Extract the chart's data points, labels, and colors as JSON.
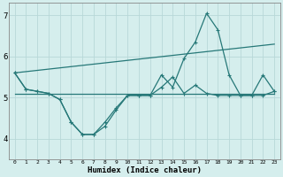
{
  "title": "",
  "xlabel": "Humidex (Indice chaleur)",
  "ylabel": "",
  "bg_color": "#d5eeed",
  "grid_color": "#b8d8d8",
  "line_color": "#267878",
  "xlim": [
    -0.5,
    23.5
  ],
  "ylim": [
    3.5,
    7.3
  ],
  "yticks": [
    4,
    5,
    6,
    7
  ],
  "xticks": [
    0,
    1,
    2,
    3,
    4,
    5,
    6,
    7,
    8,
    9,
    10,
    11,
    12,
    13,
    14,
    15,
    16,
    17,
    18,
    19,
    20,
    21,
    22,
    23
  ],
  "series": {
    "line1_x": [
      0,
      1,
      2,
      3,
      4,
      5,
      6,
      7,
      8,
      9,
      10,
      11,
      12,
      13,
      14,
      15,
      16,
      17,
      18,
      19,
      20,
      21,
      22,
      23
    ],
    "line1_y": [
      5.6,
      5.2,
      5.15,
      5.1,
      4.95,
      4.4,
      4.1,
      4.1,
      4.3,
      4.7,
      5.05,
      5.05,
      5.05,
      5.25,
      5.5,
      5.1,
      5.3,
      5.1,
      5.05,
      5.05,
      5.05,
      5.05,
      5.05,
      5.15
    ],
    "line2_x": [
      0,
      1,
      2,
      3,
      4,
      5,
      6,
      7,
      8,
      9,
      10,
      11,
      12,
      13,
      14,
      15,
      16,
      17,
      18,
      19,
      20,
      21,
      22,
      23
    ],
    "line2_y": [
      5.6,
      5.2,
      5.15,
      5.1,
      4.95,
      4.4,
      4.1,
      4.1,
      4.4,
      4.75,
      5.05,
      5.05,
      5.05,
      5.55,
      5.25,
      5.95,
      6.35,
      7.05,
      6.65,
      5.55,
      5.05,
      5.05,
      5.55,
      5.15
    ],
    "line3_x": [
      0,
      23
    ],
    "line3_y": [
      5.6,
      6.3
    ],
    "line4_x": [
      0,
      23
    ],
    "line4_y": [
      5.1,
      5.1
    ]
  }
}
